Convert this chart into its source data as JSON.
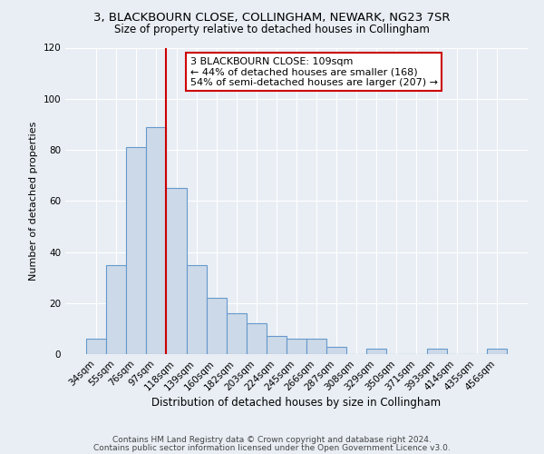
{
  "title": "3, BLACKBOURN CLOSE, COLLINGHAM, NEWARK, NG23 7SR",
  "subtitle": "Size of property relative to detached houses in Collingham",
  "xlabel": "Distribution of detached houses by size in Collingham",
  "ylabel": "Number of detached properties",
  "bar_labels": [
    "34sqm",
    "55sqm",
    "76sqm",
    "97sqm",
    "118sqm",
    "139sqm",
    "160sqm",
    "182sqm",
    "203sqm",
    "224sqm",
    "245sqm",
    "266sqm",
    "287sqm",
    "308sqm",
    "329sqm",
    "350sqm",
    "371sqm",
    "393sqm",
    "414sqm",
    "435sqm",
    "456sqm"
  ],
  "bar_values": [
    6,
    35,
    81,
    89,
    65,
    35,
    22,
    16,
    12,
    7,
    6,
    6,
    3,
    0,
    2,
    0,
    0,
    2,
    0,
    0,
    2
  ],
  "bar_color": "#ccd9e8",
  "bar_edge_color": "#6699cc",
  "vline_x_idx": 4,
  "vline_color": "#cc0000",
  "annotation_title": "3 BLACKBOURN CLOSE: 109sqm",
  "annotation_line1": "← 44% of detached houses are smaller (168)",
  "annotation_line2": "54% of semi-detached houses are larger (207) →",
  "annotation_box_color": "#ffffff",
  "annotation_box_edge": "#cc0000",
  "ylim": [
    0,
    120
  ],
  "yticks": [
    0,
    20,
    40,
    60,
    80,
    100,
    120
  ],
  "footer1": "Contains HM Land Registry data © Crown copyright and database right 2024.",
  "footer2": "Contains public sector information licensed under the Open Government Licence v3.0.",
  "bg_color": "#e8eef4",
  "plot_bg_color": "#e8eef4",
  "title_fontsize": 9.5,
  "subtitle_fontsize": 8.5,
  "xlabel_fontsize": 8.5,
  "ylabel_fontsize": 8.0,
  "tick_fontsize": 7.5,
  "footer_fontsize": 6.5,
  "annot_fontsize": 8.0
}
